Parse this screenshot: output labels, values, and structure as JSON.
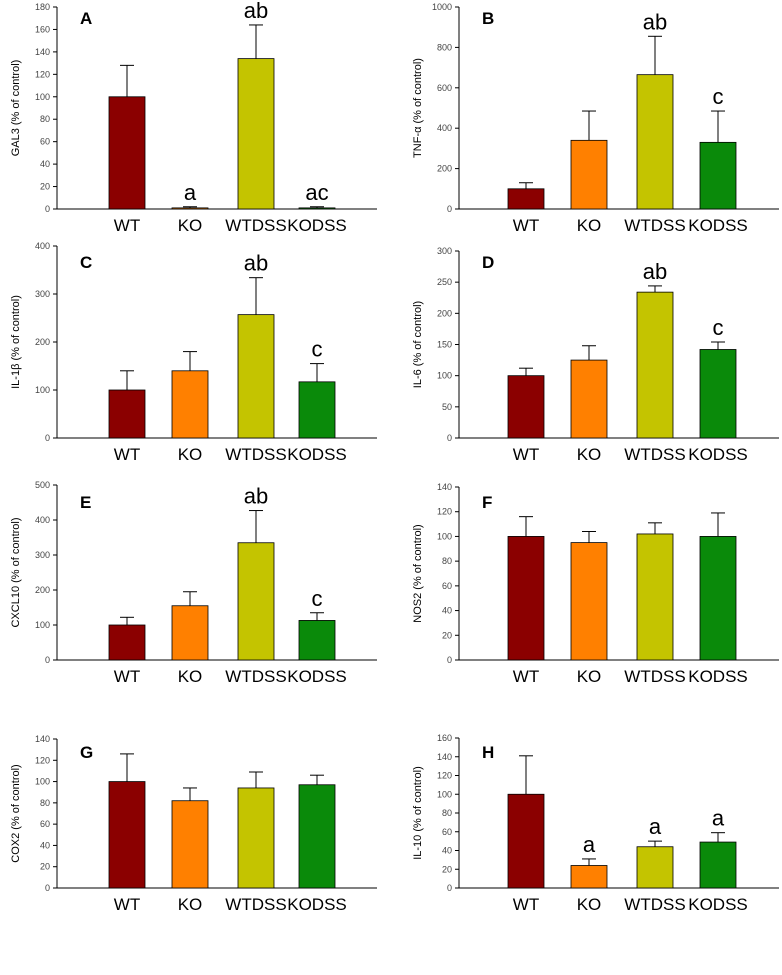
{
  "colors": {
    "WT": "#8b0000",
    "KO": "#ff8000",
    "WTDSS": "#c4c400",
    "KODSS": "#0a8a0a",
    "axis": "#000000"
  },
  "chart_data": [
    {
      "type": "bar",
      "panel": "A",
      "ylabel": "GAL3 (% of control)",
      "categories": [
        "WT",
        "KO",
        "WTDSS",
        "KODSS"
      ],
      "values": [
        100,
        1,
        134,
        1
      ],
      "errors": [
        28,
        1,
        30,
        1
      ],
      "ylim": [
        0,
        180
      ],
      "yticks": [
        "0",
        "20",
        "40",
        "60",
        "80",
        "100",
        "120",
        "140",
        "160",
        "180"
      ],
      "annotations": [
        "",
        "a",
        "ab",
        "ac"
      ]
    },
    {
      "type": "bar",
      "panel": "B",
      "ylabel": "TNF-α (% of control)",
      "categories": [
        "WT",
        "KO",
        "WTDSS",
        "KODSS"
      ],
      "values": [
        100,
        340,
        665,
        330
      ],
      "errors": [
        30,
        145,
        190,
        155
      ],
      "ylim": [
        0,
        1000
      ],
      "yticks": [
        "0",
        "200",
        "400",
        "600",
        "800",
        "1000"
      ],
      "annotations": [
        "",
        "",
        "ab",
        "c"
      ]
    },
    {
      "type": "bar",
      "panel": "C",
      "ylabel": "IL-1β (% of control)",
      "categories": [
        "WT",
        "KO",
        "WTDSS",
        "KODSS"
      ],
      "values": [
        100,
        140,
        257,
        117
      ],
      "errors": [
        40,
        40,
        77,
        38
      ],
      "ylim": [
        0,
        400
      ],
      "yticks": [
        "0",
        "100",
        "200",
        "300",
        "400"
      ],
      "annotations": [
        "",
        "",
        "ab",
        "c"
      ]
    },
    {
      "type": "bar",
      "panel": "D",
      "ylabel": "IL-6 (% of control)",
      "categories": [
        "WT",
        "KO",
        "WTDSS",
        "KODSS"
      ],
      "values": [
        100,
        125,
        234,
        142
      ],
      "errors": [
        12,
        23,
        10,
        12
      ],
      "ylim": [
        0,
        300
      ],
      "yticks": [
        "0",
        "50",
        "100",
        "150",
        "200",
        "250",
        "300"
      ],
      "annotations": [
        "",
        "",
        "ab",
        "c"
      ]
    },
    {
      "type": "bar",
      "panel": "E",
      "ylabel": "CXCL10 (% of control)",
      "categories": [
        "WT",
        "KO",
        "WTDSS",
        "KODSS"
      ],
      "values": [
        100,
        155,
        335,
        113
      ],
      "errors": [
        22,
        40,
        92,
        22
      ],
      "ylim": [
        0,
        500
      ],
      "yticks": [
        "0",
        "100",
        "200",
        "300",
        "400",
        "500"
      ],
      "annotations": [
        "",
        "",
        "ab",
        "c"
      ]
    },
    {
      "type": "bar",
      "panel": "F",
      "ylabel": "NOS2 (% of control)",
      "categories": [
        "WT",
        "KO",
        "WTDSS",
        "KODSS"
      ],
      "values": [
        100,
        95,
        102,
        100
      ],
      "errors": [
        16,
        9,
        9,
        19
      ],
      "ylim": [
        0,
        140
      ],
      "yticks": [
        "0",
        "20",
        "40",
        "60",
        "80",
        "100",
        "120",
        "140"
      ],
      "annotations": [
        "",
        "",
        "",
        ""
      ]
    },
    {
      "type": "bar",
      "panel": "G",
      "ylabel": "COX2 (% of control)",
      "categories": [
        "WT",
        "KO",
        "WTDSS",
        "KODSS"
      ],
      "values": [
        100,
        82,
        94,
        97
      ],
      "errors": [
        26,
        12,
        15,
        9
      ],
      "ylim": [
        0,
        140
      ],
      "yticks": [
        "0",
        "20",
        "40",
        "60",
        "80",
        "100",
        "120",
        "140"
      ],
      "annotations": [
        "",
        "",
        "",
        ""
      ]
    },
    {
      "type": "bar",
      "panel": "H",
      "ylabel": "IL-10 (% of control)",
      "categories": [
        "WT",
        "KO",
        "WTDSS",
        "KODSS"
      ],
      "values": [
        100,
        24,
        44,
        49
      ],
      "errors": [
        41,
        7,
        6,
        10
      ],
      "ylim": [
        0,
        160
      ],
      "yticks": [
        "0",
        "20",
        "40",
        "60",
        "80",
        "100",
        "120",
        "140",
        "160"
      ],
      "annotations": [
        "",
        "a",
        "a",
        "a"
      ]
    }
  ]
}
